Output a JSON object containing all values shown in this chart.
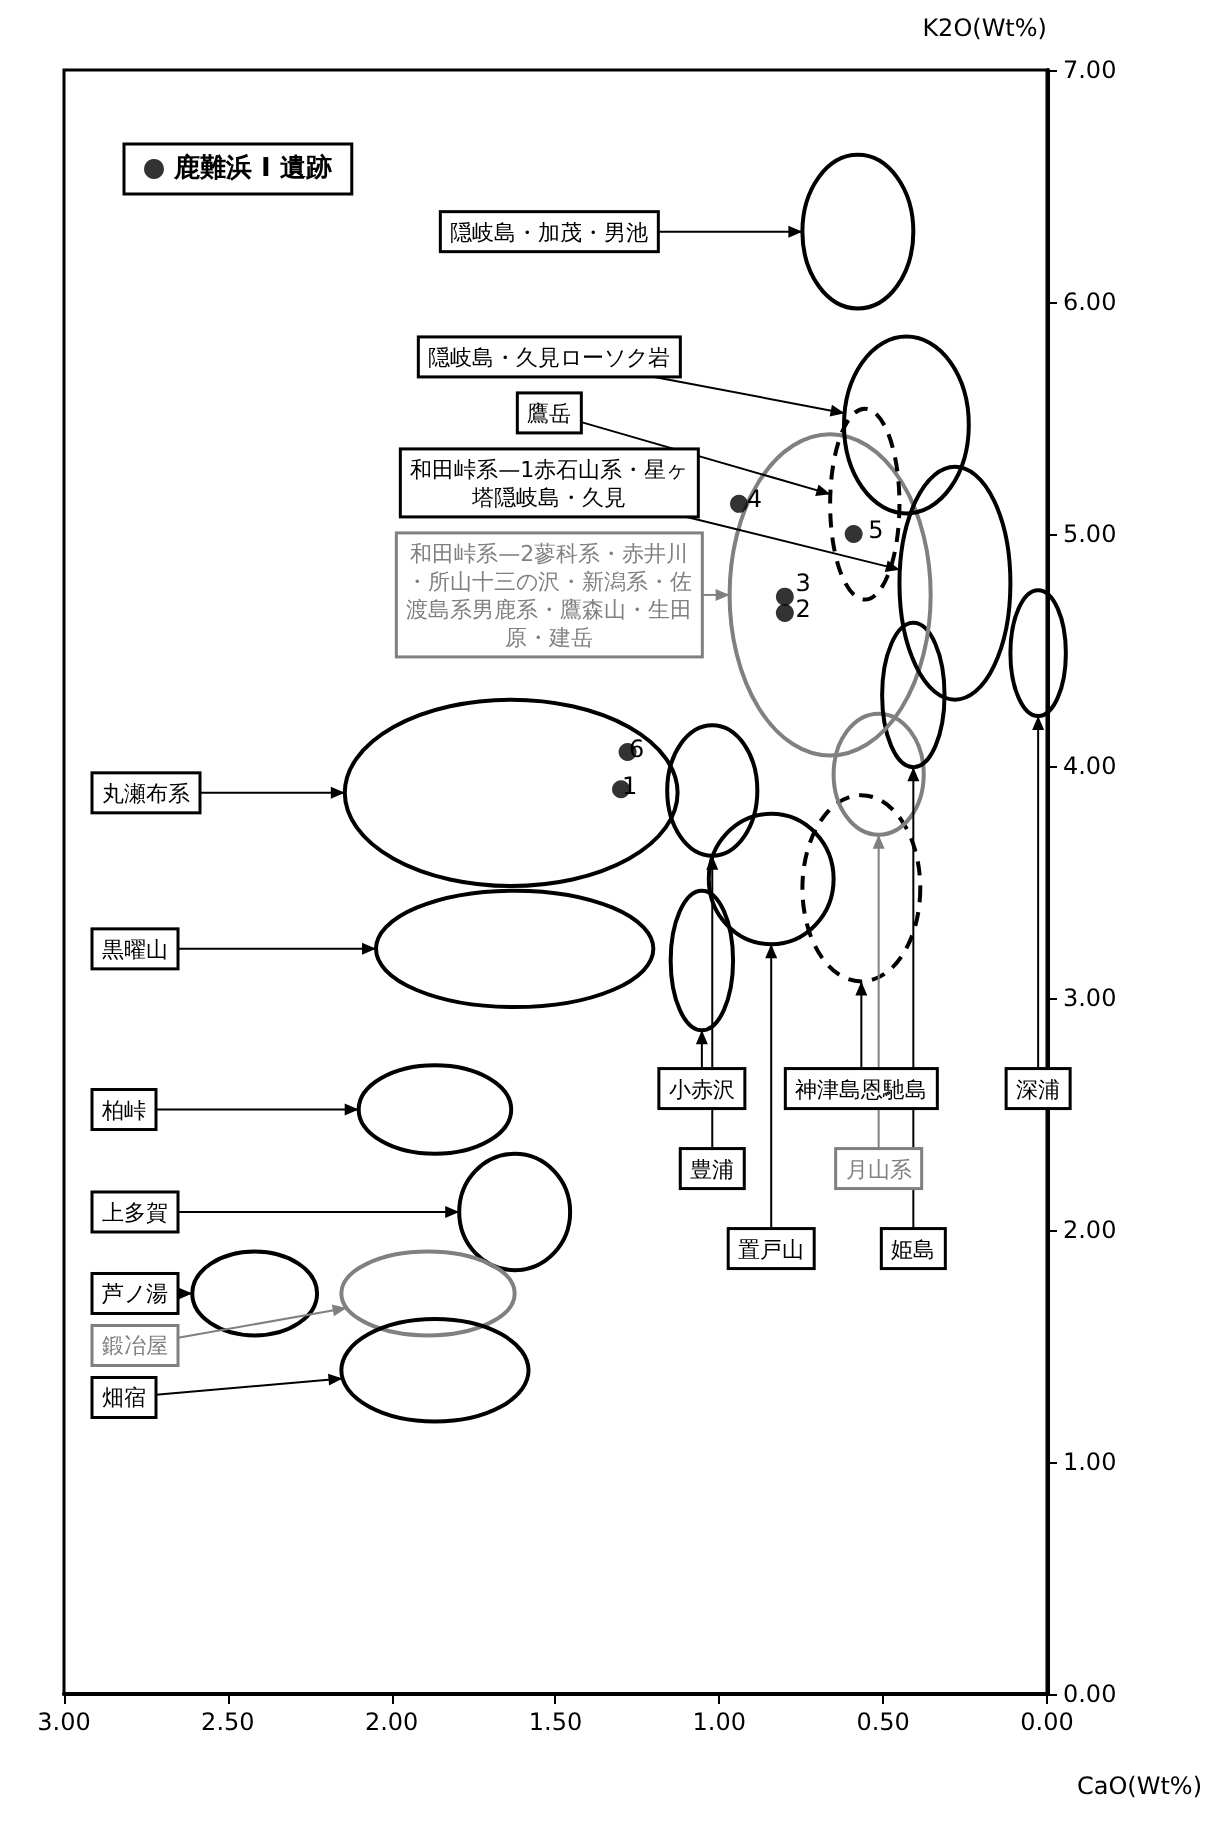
{
  "chart_data": {
    "type": "scatter",
    "xlabel": "CaO(Wt%)",
    "ylabel": "K2O(Wt%)",
    "xlim": [
      3,
      0
    ],
    "ylim": [
      0,
      7
    ],
    "xticks": [
      {
        "value": 3,
        "label": "3.00"
      },
      {
        "value": 2.5,
        "label": "2.50"
      },
      {
        "value": 2,
        "label": "2.00"
      },
      {
        "value": 1.5,
        "label": "1.50"
      },
      {
        "value": 1,
        "label": "1.00"
      },
      {
        "value": 0.5,
        "label": "0.50"
      },
      {
        "value": 0,
        "label": "0.00"
      }
    ],
    "yticks": [
      {
        "value": 0,
        "label": "0.00"
      },
      {
        "value": 1,
        "label": "1.00"
      },
      {
        "value": 2,
        "label": "2.00"
      },
      {
        "value": 3,
        "label": "3.00"
      },
      {
        "value": 4,
        "label": "4.00"
      },
      {
        "value": 5,
        "label": "5.00"
      },
      {
        "value": 6,
        "label": "6.00"
      },
      {
        "value": 7,
        "label": "7.00"
      }
    ],
    "grid": false,
    "legend": "top left",
    "annotations": [
      "丸瀬布系",
      "黒曜山",
      "柏峠",
      "上多賀",
      "芦ノ湯",
      "鍛冶屋",
      "畑宿",
      "豊浦",
      "置戸山",
      "小赤沢",
      "神津島恩馳島",
      "月山系",
      "姫島",
      "深浦",
      "和田峠系—2蓼科系・赤井川・所山十三の沢・新潟系・佐渡島系男鹿系・鷹森山・生田原・建岳",
      "鷹岳",
      "和田峠系—1赤石山系・星ヶ塔隠岐島・久見",
      "隠岐島・久見ローソク岩",
      "隠岐島・加茂・男池",
      {
        "text": "1",
        "x": 1.3,
        "y": 3.9
      },
      {
        "text": "2",
        "x": 0.8,
        "y": 4.66
      },
      {
        "text": "3",
        "x": 0.8,
        "y": 4.73
      },
      {
        "text": "4",
        "x": 0.94,
        "y": 5.13
      },
      {
        "text": "5",
        "x": 0.59,
        "y": 5.0
      },
      {
        "text": "6",
        "x": 1.28,
        "y": 4.06
      }
    ],
    "series": [
      {
        "name": "鹿難浜 I 遺跡",
        "marker": "circle",
        "color": "#000000",
        "x": [
          1.3,
          0.8,
          0.8,
          0.94,
          0.59,
          1.28
        ],
        "values": [
          3.9,
          4.66,
          4.73,
          5.13,
          5.0,
          4.06
        ]
      }
    ]
  }
}
